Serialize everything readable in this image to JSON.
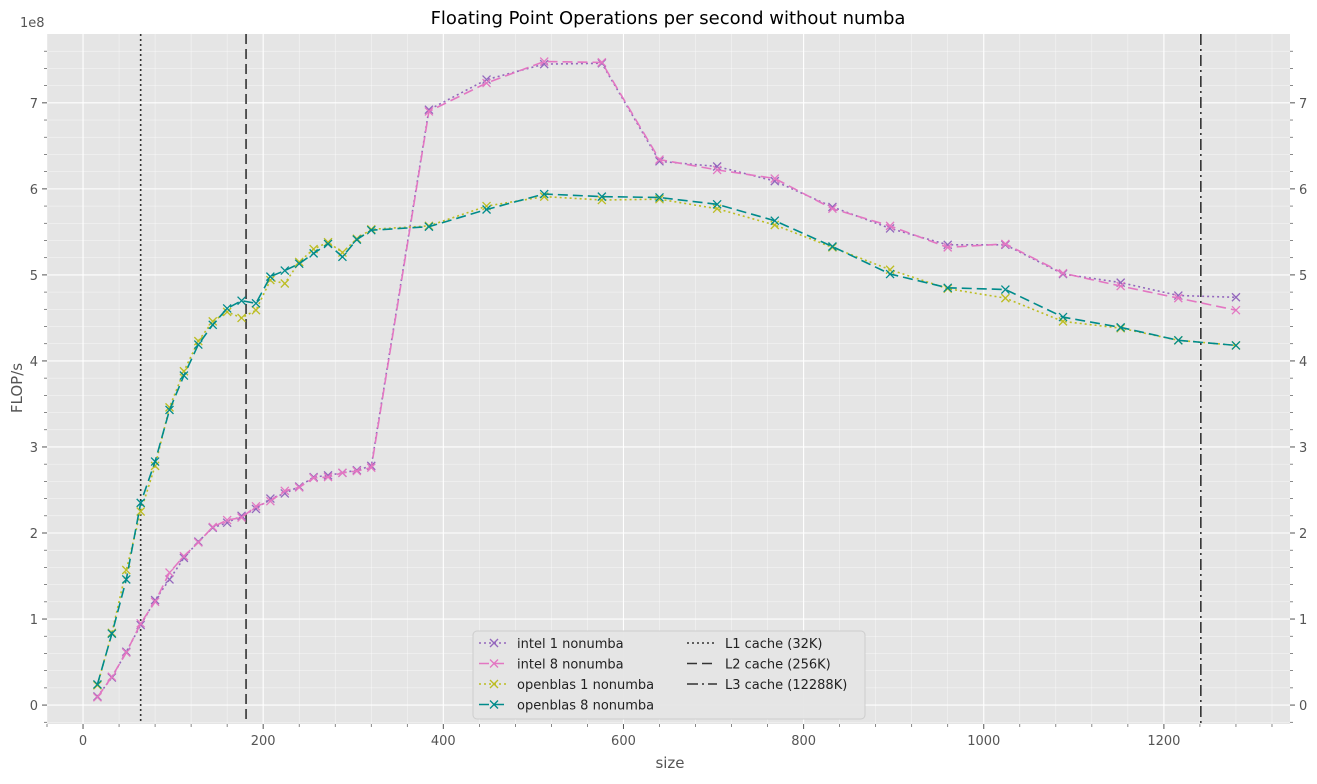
{
  "chart_data": {
    "type": "line",
    "title": "Floating Point Operations per second without numba",
    "xlabel": "size",
    "ylabel": "FLOP/s",
    "y_offset_text": "1e8",
    "xlim": [
      -40,
      1340
    ],
    "ylim": [
      -0.22,
      7.8
    ],
    "y_multiplier": 100000000,
    "x_ticks": [
      0,
      200,
      400,
      600,
      800,
      1000,
      1200
    ],
    "y_ticks": [
      0,
      1,
      2,
      3,
      4,
      5,
      6,
      7
    ],
    "grid": true,
    "legend_placement": "lower center",
    "series": [
      {
        "name": "intel 1 nonumba",
        "color": "#9467bd",
        "linestyle": "dotted",
        "marker": "x",
        "x": [
          16,
          32,
          48,
          64,
          80,
          96,
          112,
          128,
          144,
          160,
          176,
          192,
          208,
          224,
          240,
          256,
          272,
          288,
          304,
          320,
          384,
          448,
          512,
          576,
          640,
          704,
          768,
          832,
          896,
          960,
          1024,
          1088,
          1152,
          1216,
          1280
        ],
        "y": [
          0.1,
          0.32,
          0.62,
          0.93,
          1.22,
          1.46,
          1.71,
          1.9,
          2.06,
          2.12,
          2.2,
          2.28,
          2.4,
          2.46,
          2.54,
          2.65,
          2.67,
          2.7,
          2.73,
          2.78,
          6.92,
          7.27,
          7.45,
          7.46,
          6.32,
          6.26,
          6.09,
          5.79,
          5.54,
          5.35,
          5.35,
          5.01,
          4.91,
          4.76,
          4.74
        ]
      },
      {
        "name": "intel 8 nonumba",
        "color": "#e377c2",
        "linestyle": "dashed",
        "marker": "x",
        "x": [
          16,
          32,
          48,
          64,
          80,
          96,
          112,
          128,
          144,
          160,
          176,
          192,
          208,
          224,
          240,
          256,
          272,
          288,
          304,
          320,
          384,
          448,
          512,
          576,
          640,
          704,
          768,
          832,
          896,
          960,
          1024,
          1088,
          1152,
          1216,
          1280
        ],
        "y": [
          0.09,
          0.33,
          0.61,
          0.95,
          1.2,
          1.54,
          1.73,
          1.89,
          2.07,
          2.15,
          2.18,
          2.31,
          2.37,
          2.49,
          2.53,
          2.64,
          2.65,
          2.7,
          2.72,
          2.76,
          6.9,
          7.23,
          7.48,
          7.47,
          6.34,
          6.22,
          6.12,
          5.77,
          5.57,
          5.32,
          5.36,
          5.02,
          4.87,
          4.73,
          4.59
        ]
      },
      {
        "name": "openblas 1 nonumba",
        "color": "#bcbd22",
        "linestyle": "dotted",
        "marker": "x",
        "x": [
          16,
          32,
          48,
          64,
          80,
          96,
          112,
          128,
          144,
          160,
          176,
          192,
          208,
          224,
          240,
          256,
          272,
          288,
          304,
          320,
          384,
          448,
          512,
          576,
          640,
          704,
          768,
          832,
          896,
          960,
          1024,
          1088,
          1152,
          1216,
          1280
        ],
        "y": [
          0.23,
          0.84,
          1.57,
          2.25,
          2.78,
          3.46,
          3.88,
          4.23,
          4.46,
          4.57,
          4.5,
          4.59,
          4.94,
          4.9,
          5.15,
          5.3,
          5.38,
          5.26,
          5.42,
          5.53,
          5.57,
          5.8,
          5.91,
          5.87,
          5.88,
          5.77,
          5.58,
          5.32,
          5.06,
          4.84,
          4.73,
          4.46,
          4.38,
          4.24,
          4.18
        ]
      },
      {
        "name": "openblas 8 nonumba",
        "color": "#008b8b",
        "linestyle": "dashed",
        "marker": "x",
        "x": [
          16,
          32,
          48,
          64,
          80,
          96,
          112,
          128,
          144,
          160,
          176,
          192,
          208,
          224,
          240,
          256,
          272,
          288,
          304,
          320,
          384,
          448,
          512,
          576,
          640,
          704,
          768,
          832,
          896,
          960,
          1024,
          1088,
          1152,
          1216,
          1280
        ],
        "y": [
          0.24,
          0.83,
          1.46,
          2.35,
          2.83,
          3.43,
          3.83,
          4.19,
          4.42,
          4.61,
          4.7,
          4.67,
          4.98,
          5.05,
          5.13,
          5.25,
          5.36,
          5.21,
          5.41,
          5.52,
          5.56,
          5.76,
          5.94,
          5.91,
          5.9,
          5.82,
          5.63,
          5.33,
          5.01,
          4.85,
          4.83,
          4.51,
          4.39,
          4.24,
          4.18
        ]
      }
    ],
    "cache_lines": [
      {
        "name": "L1 cache (32K)",
        "x": 64,
        "linestyle": "dotted",
        "color": "#333333"
      },
      {
        "name": "L2 cache (256K)",
        "x": 181,
        "linestyle": "dashed",
        "color": "#333333"
      },
      {
        "name": "L3 cache (12288K)",
        "x": 1241,
        "linestyle": "dashdot",
        "color": "#333333"
      }
    ],
    "colors": {
      "axes_background": "#e5e5e5",
      "grid": "#ffffff",
      "text": "#555555",
      "title": "#000000"
    }
  }
}
